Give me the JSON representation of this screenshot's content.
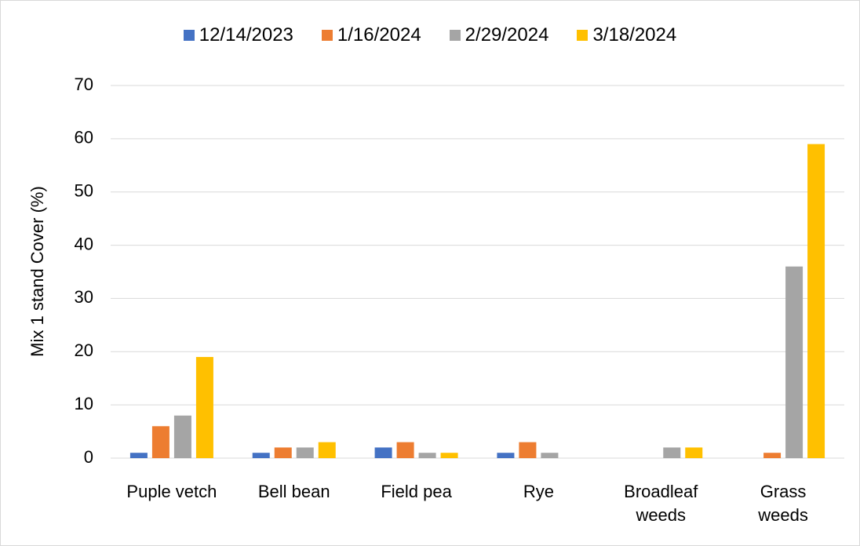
{
  "chart_data": {
    "type": "bar",
    "categories": [
      "Puple vetch",
      "Bell bean",
      "Field pea",
      "Rye",
      "Broadleaf\nweeds",
      "Grass\nweeds"
    ],
    "series": [
      {
        "name": "12/14/2023",
        "color": "#4472c4",
        "values": [
          1,
          1,
          2,
          1,
          0,
          0
        ]
      },
      {
        "name": "1/16/2024",
        "color": "#ed7d31",
        "values": [
          6,
          2,
          3,
          3,
          0,
          1
        ]
      },
      {
        "name": "2/29/2024",
        "color": "#a5a5a5",
        "values": [
          8,
          2,
          1,
          1,
          2,
          36
        ]
      },
      {
        "name": "3/18/2024",
        "color": "#ffc000",
        "values": [
          19,
          3,
          1,
          0,
          2,
          59
        ]
      }
    ],
    "y_label": "Mix 1 stand Cover (%)",
    "ylim": [
      0,
      70
    ],
    "yticks": [
      0,
      10,
      20,
      30,
      40,
      50,
      60,
      70
    ],
    "grid": true,
    "legend": "top"
  }
}
